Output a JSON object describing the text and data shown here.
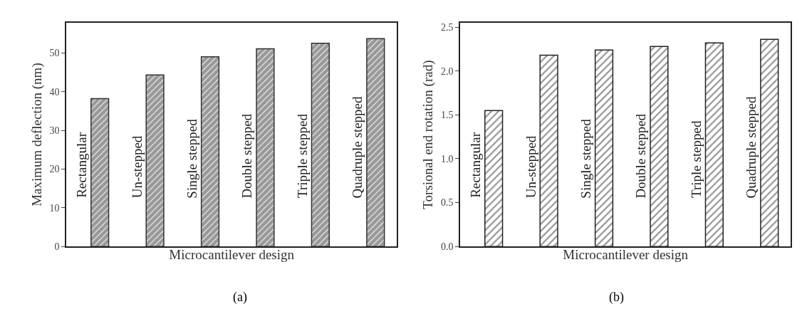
{
  "chart_data": [
    {
      "type": "bar",
      "title": "(a)",
      "xlabel": "Microcantilever design",
      "ylabel": "Maximum deflection (nm)",
      "categories": [
        "Rectangular",
        "Un-stepped",
        "Single stepped",
        "Double stepped",
        "Tripple stepped",
        "Quadruple stepped"
      ],
      "values": [
        38.2,
        44.3,
        49.0,
        51.1,
        52.5,
        53.7
      ],
      "color": "#333333",
      "ylim": [
        0,
        57.8
      ],
      "yticks": [
        0,
        10,
        20,
        30,
        40,
        50
      ]
    },
    {
      "type": "bar",
      "title": "(b)",
      "xlabel": "Microcantilever design",
      "ylabel": "Torsional end rotation (rad)",
      "categories": [
        "Rectangular",
        "Un-stepped",
        "Single stepped",
        "Double stepped",
        "Triple stepped",
        "Quadruple stepped"
      ],
      "values": [
        1.55,
        2.18,
        2.24,
        2.28,
        2.32,
        2.36
      ],
      "color": "#222222",
      "ylim": [
        0,
        2.55
      ],
      "yticks": [
        {
          "value": 0,
          "label": "0.0"
        },
        0.5,
        {
          "value": 1,
          "label": "1.0"
        },
        1.5,
        {
          "value": 2,
          "label": "2.0"
        },
        2.5
      ]
    }
  ]
}
